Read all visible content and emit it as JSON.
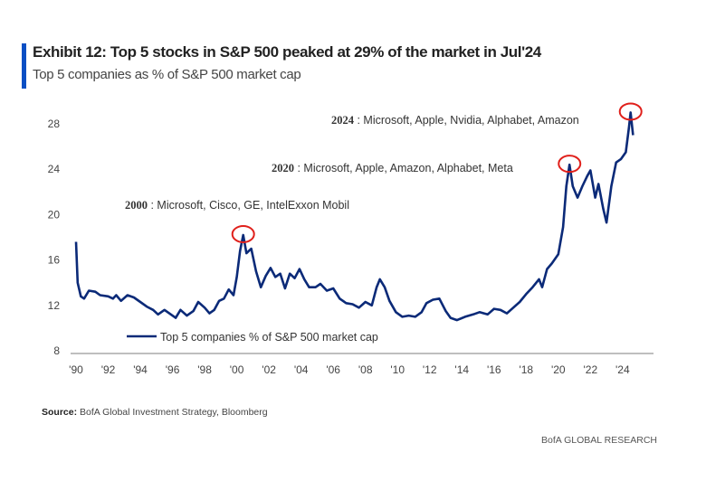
{
  "header": {
    "title": "Exhibit 12: Top 5 stocks in S&P 500 peaked at 29% of the market in Jul'24",
    "subtitle": "Top 5 companies as % of S&P 500 market cap",
    "accent_color": "#0a4fc4"
  },
  "chart_data": {
    "type": "line",
    "title": "Exhibit 12: Top 5 stocks in S&P 500 peaked at 29% of the market in Jul'24",
    "subtitle": "Top 5 companies as % of S&P 500 market cap",
    "xlabel": "",
    "ylabel": "",
    "xlim": [
      1990,
      2026
    ],
    "ylim": [
      8,
      29.5
    ],
    "x_ticks": [
      1990,
      1992,
      1994,
      1996,
      1998,
      2000,
      2002,
      2004,
      2006,
      2008,
      2010,
      2012,
      2014,
      2016,
      2018,
      2020,
      2022,
      2024
    ],
    "x_tick_labels": [
      "'90",
      "'92",
      "'94",
      "'96",
      "'98",
      "'00",
      "'02",
      "'04",
      "'06",
      "'08",
      "'10",
      "'12",
      "'14",
      "'16",
      "'18",
      "'20",
      "'22",
      "'24"
    ],
    "y_ticks": [
      8,
      12,
      16,
      20,
      24,
      28
    ],
    "y_tick_labels": [
      "8",
      "12",
      "16",
      "20",
      "24",
      "28"
    ],
    "grid": false,
    "legend": "bottom-left",
    "line_color": "#0b2a78",
    "highlight_color": "#e0201b",
    "series": [
      {
        "name": "Top 5 companies % of S&P 500 market cap",
        "x": [
          1990.0,
          1990.1,
          1990.3,
          1990.5,
          1990.8,
          1991.2,
          1991.5,
          1992.0,
          1992.3,
          1992.5,
          1992.8,
          1993.2,
          1993.6,
          1994.0,
          1994.4,
          1994.8,
          1995.1,
          1995.5,
          1995.9,
          1996.2,
          1996.5,
          1996.9,
          1997.3,
          1997.6,
          1998.0,
          1998.3,
          1998.6,
          1998.9,
          1999.2,
          1999.5,
          1999.8,
          2000.0,
          2000.2,
          2000.4,
          2000.6,
          2000.9,
          2001.2,
          2001.5,
          2001.8,
          2002.1,
          2002.4,
          2002.7,
          2003.0,
          2003.3,
          2003.6,
          2003.9,
          2004.2,
          2004.5,
          2004.9,
          2005.2,
          2005.6,
          2006.0,
          2006.4,
          2006.8,
          2007.2,
          2007.6,
          2008.0,
          2008.4,
          2008.7,
          2008.9,
          2009.2,
          2009.5,
          2009.9,
          2010.3,
          2010.7,
          2011.1,
          2011.5,
          2011.8,
          2012.2,
          2012.6,
          2013.0,
          2013.3,
          2013.7,
          2014.2,
          2014.7,
          2015.1,
          2015.6,
          2016.0,
          2016.4,
          2016.8,
          2017.2,
          2017.6,
          2018.0,
          2018.4,
          2018.8,
          2019.0,
          2019.3,
          2019.6,
          2020.0,
          2020.3,
          2020.5,
          2020.7,
          2020.9,
          2021.2,
          2021.5,
          2021.8,
          2022.0,
          2022.3,
          2022.5,
          2022.8,
          2023.0,
          2023.3,
          2023.6,
          2023.9,
          2024.2,
          2024.4,
          2024.5,
          2024.65
        ],
        "values": [
          17.6,
          14.0,
          12.8,
          12.6,
          13.3,
          13.2,
          12.9,
          12.8,
          12.6,
          12.9,
          12.4,
          12.9,
          12.7,
          12.3,
          11.9,
          11.6,
          11.2,
          11.6,
          11.2,
          10.9,
          11.6,
          11.1,
          11.5,
          12.3,
          11.8,
          11.3,
          11.6,
          12.4,
          12.6,
          13.4,
          12.9,
          14.5,
          16.8,
          18.2,
          16.6,
          17.0,
          15.0,
          13.6,
          14.6,
          15.3,
          14.5,
          14.8,
          13.5,
          14.8,
          14.4,
          15.2,
          14.3,
          13.6,
          13.6,
          13.9,
          13.3,
          13.5,
          12.6,
          12.2,
          12.1,
          11.8,
          12.3,
          12.0,
          13.6,
          14.3,
          13.6,
          12.4,
          11.4,
          11.0,
          11.1,
          11.0,
          11.4,
          12.2,
          12.5,
          12.6,
          11.5,
          10.9,
          10.7,
          11.0,
          11.2,
          11.4,
          11.2,
          11.7,
          11.6,
          11.3,
          11.8,
          12.3,
          13.0,
          13.6,
          14.3,
          13.6,
          15.2,
          15.7,
          16.5,
          18.9,
          22.5,
          24.4,
          22.5,
          21.5,
          22.5,
          23.4,
          23.9,
          21.5,
          22.7,
          20.5,
          19.3,
          22.5,
          24.6,
          24.9,
          25.5,
          27.7,
          29.0,
          27.0
        ]
      }
    ],
    "highlights": [
      {
        "x": 2000.4,
        "y": 18.2
      },
      {
        "x": 2020.7,
        "y": 24.4
      },
      {
        "x": 2024.5,
        "y": 29.0
      }
    ],
    "annotations": [
      {
        "year": "2000",
        "text": " : Microsoft, Cisco, GE, IntelExxon Mobil"
      },
      {
        "year": "2020",
        "text": " : Microsoft, Apple, Amazon, Alphabet, Meta"
      },
      {
        "year": "2024",
        "text": " : Microsoft, Apple, Nvidia, Alphabet, Amazon"
      }
    ]
  },
  "footer": {
    "source_label": "Source:",
    "source_text": " BofA Global Investment Strategy, Bloomberg",
    "brand": "BofA GLOBAL RESEARCH"
  }
}
